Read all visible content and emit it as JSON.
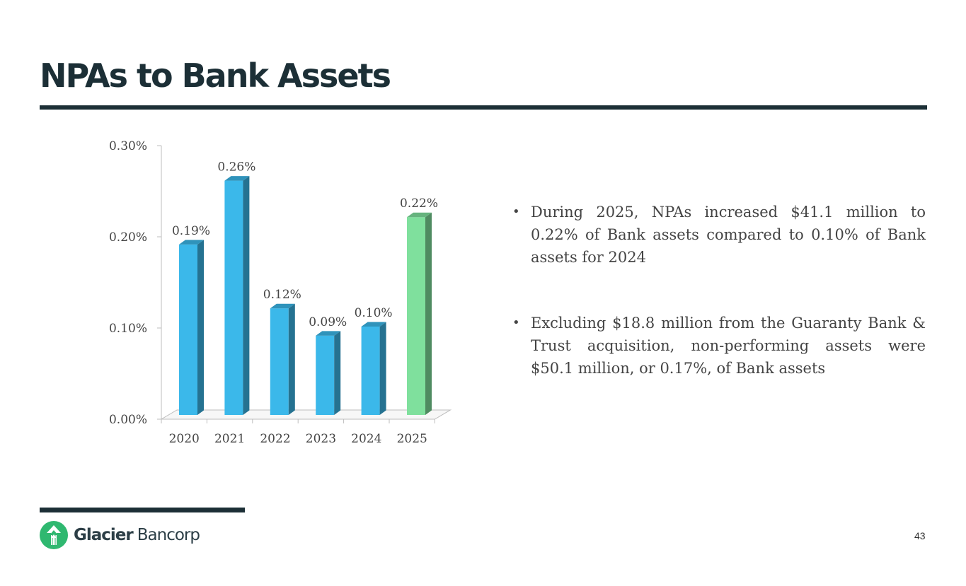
{
  "slide": {
    "title": "NPAs to Bank Assets",
    "page_number": "43"
  },
  "bullets": [
    {
      "text": "During 2025, NPAs increased $41.1 million to 0.22% of Bank assets compared to 0.10% of Bank assets for 2024"
    },
    {
      "text": "Excluding $18.8 million from the Guaranty Bank & Trust acquisition, non-performing assets were $50.1 million, or 0.17%, of Bank assets"
    }
  ],
  "logo": {
    "name_bold": "Glacier",
    "name_light": "Bancorp"
  },
  "colors": {
    "primary_bar": "#3bb8ea",
    "highlight_bar": "#7fe09d",
    "title_text": "#1c2f36"
  },
  "chart_data": {
    "type": "bar",
    "categories": [
      "2020",
      "2021",
      "2022",
      "2023",
      "2024",
      "2025"
    ],
    "values": [
      0.19,
      0.26,
      0.12,
      0.09,
      0.1,
      0.22
    ],
    "data_labels": [
      "0.19%",
      "0.26%",
      "0.12%",
      "0.09%",
      "0.10%",
      "0.22%"
    ],
    "highlight_index": 5,
    "ylim": [
      0,
      0.3
    ],
    "yticks": [
      0,
      0.1,
      0.2,
      0.3
    ],
    "ytick_labels": [
      "0.00%",
      "0.10%",
      "0.20%",
      "0.30%"
    ],
    "grid": false,
    "three_d": true
  }
}
